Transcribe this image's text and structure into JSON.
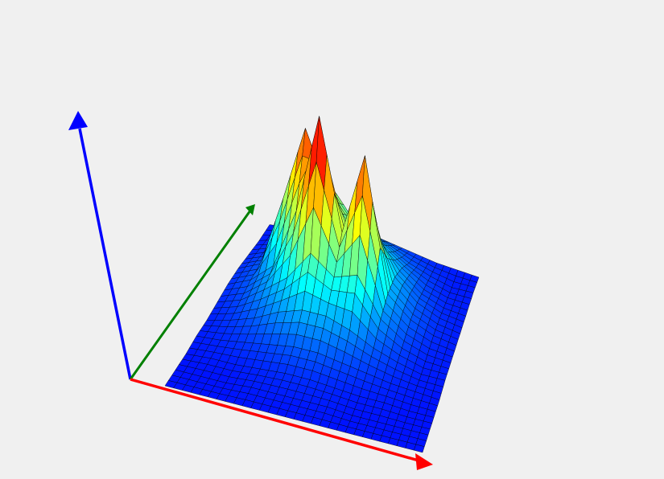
{
  "chart_data": {
    "type": "surface",
    "colormap": "jet",
    "x": [
      0,
      0.1,
      0.2,
      0.3,
      0.4,
      0.5,
      0.6,
      0.7,
      0.8,
      0.9,
      1
    ],
    "y": [
      0,
      0.1,
      0.2,
      0.3,
      0.4,
      0.5,
      0.6,
      0.7,
      0.8,
      0.9,
      1
    ],
    "xlim": [
      0,
      1
    ],
    "ylim": [
      0,
      1
    ],
    "zlim": [
      0,
      1
    ],
    "z": [
      [
        0.02,
        0.02,
        0.02,
        0.02,
        0.02,
        0.02,
        0.02,
        0.02,
        0.02,
        0.02,
        0.02
      ],
      [
        0.02,
        0.02,
        0.02,
        0.03,
        0.03,
        0.03,
        0.03,
        0.02,
        0.02,
        0.02,
        0.02
      ],
      [
        0.02,
        0.03,
        0.03,
        0.04,
        0.05,
        0.05,
        0.04,
        0.03,
        0.03,
        0.02,
        0.02
      ],
      [
        0.03,
        0.04,
        0.06,
        0.08,
        0.1,
        0.1,
        0.08,
        0.06,
        0.04,
        0.03,
        0.02
      ],
      [
        0.03,
        0.06,
        0.1,
        0.16,
        0.2,
        0.2,
        0.16,
        0.1,
        0.06,
        0.03,
        0.03
      ],
      [
        0.04,
        0.08,
        0.16,
        0.25,
        0.4,
        0.31,
        0.35,
        0.16,
        0.08,
        0.04,
        0.03
      ],
      [
        0.05,
        0.1,
        0.2,
        0.5,
        1.0,
        0.45,
        0.86,
        0.2,
        0.1,
        0.05,
        0.03
      ],
      [
        0.05,
        0.1,
        0.45,
        0.83,
        0.55,
        0.4,
        0.45,
        0.2,
        0.1,
        0.05,
        0.03
      ],
      [
        0.04,
        0.08,
        0.25,
        0.55,
        0.45,
        0.31,
        0.25,
        0.16,
        0.08,
        0.04,
        0.03
      ],
      [
        0.03,
        0.06,
        0.12,
        0.3,
        0.22,
        0.2,
        0.16,
        0.1,
        0.06,
        0.03,
        0.03
      ],
      [
        0.03,
        0.04,
        0.06,
        0.08,
        0.1,
        0.1,
        0.08,
        0.06,
        0.04,
        0.03,
        0.02
      ]
    ]
  }
}
